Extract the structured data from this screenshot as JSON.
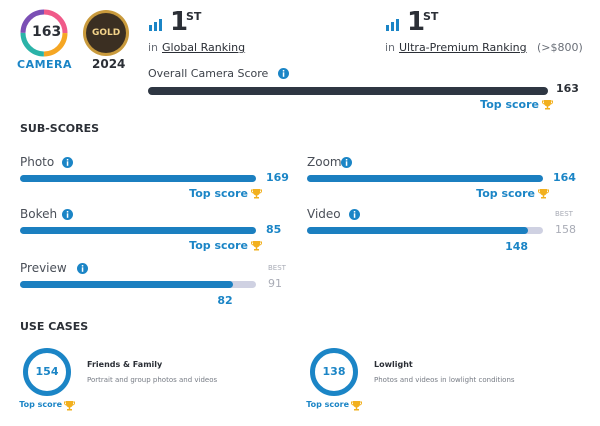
{
  "badge": {
    "score": 163,
    "label": "CAMERA"
  },
  "award": {
    "label": "GOLD",
    "year": "2024"
  },
  "rankings": [
    {
      "rank": 1,
      "suffix": "ST",
      "prefix": "in",
      "link": "Global Ranking"
    },
    {
      "rank": 1,
      "suffix": "ST",
      "prefix": "in",
      "link": "Ultra-Premium Ranking",
      "note": "(>$800)"
    }
  ],
  "overall": {
    "label": "Overall Camera Score",
    "score": 163,
    "top_label": "Top score"
  },
  "subscores": {
    "title": "SUB-SCORES",
    "items": [
      {
        "name": "Photo",
        "score": 169,
        "top_label": "Top score"
      },
      {
        "name": "Zoom",
        "score": 164,
        "top_label": "Top score"
      },
      {
        "name": "Bokeh",
        "score": 85,
        "top_label": "Top score"
      },
      {
        "name": "Video",
        "score": 148,
        "best_label": "BEST",
        "best": 158
      },
      {
        "name": "Preview",
        "score": 82,
        "best_label": "BEST",
        "best": 91
      }
    ]
  },
  "use_cases": {
    "title": "USE CASES",
    "items": [
      {
        "name": "Friends & Family",
        "description": "Portrait and group photos and videos",
        "score": 154,
        "top_label": "Top score"
      },
      {
        "name": "Lowlight",
        "description": "Photos and videos in lowlight conditions",
        "score": 138,
        "top_label": "Top score"
      }
    ]
  }
}
